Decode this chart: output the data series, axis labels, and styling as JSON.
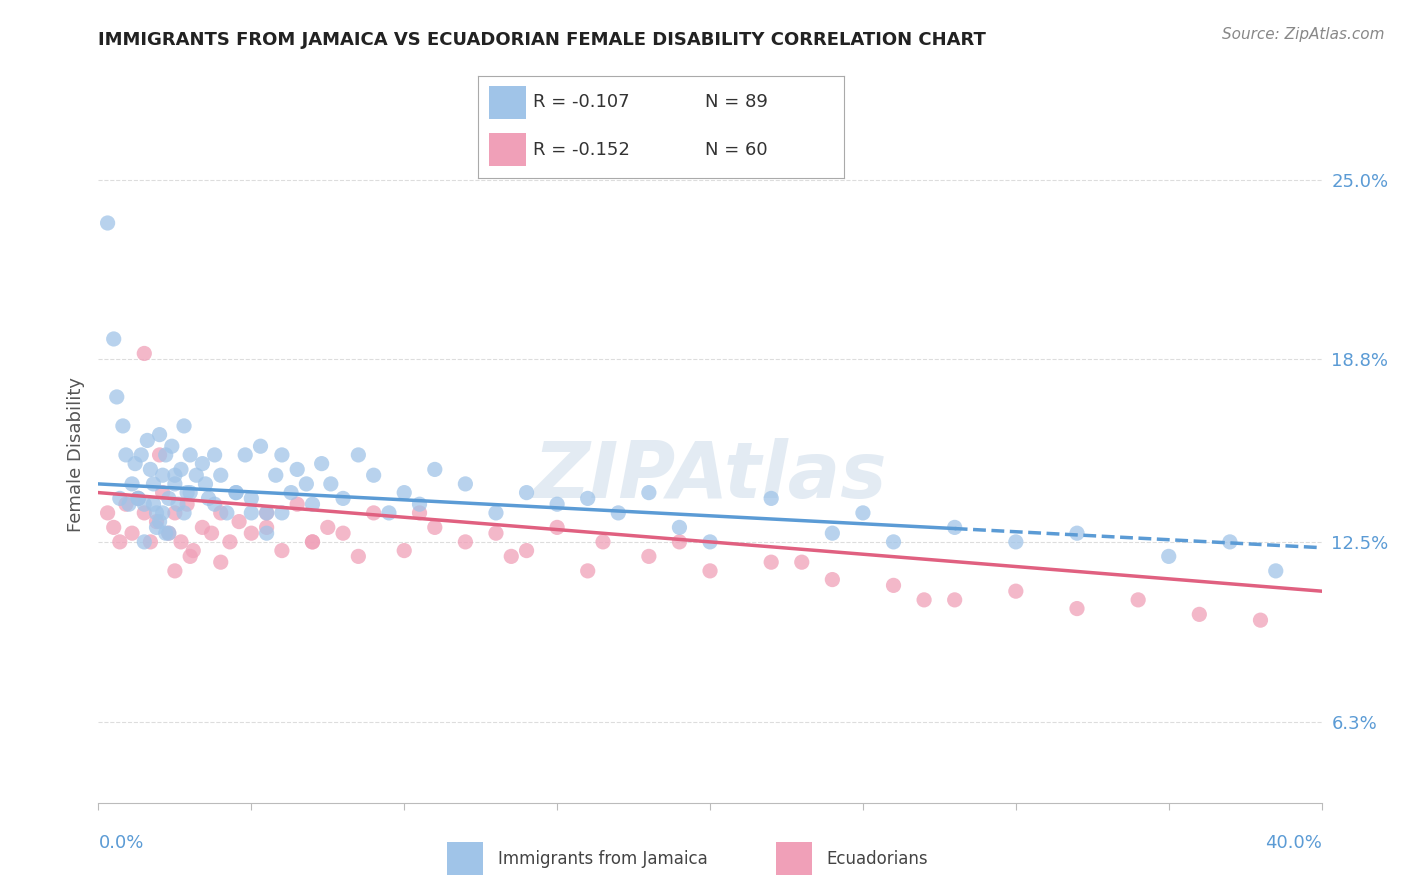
{
  "title": "IMMIGRANTS FROM JAMAICA VS ECUADORIAN FEMALE DISABILITY CORRELATION CHART",
  "source_text": "Source: ZipAtlas.com",
  "ylabel": "Female Disability",
  "right_yticks": [
    6.3,
    12.5,
    18.8,
    25.0
  ],
  "right_ytick_labels": [
    "6.3%",
    "12.5%",
    "18.8%",
    "25.0%"
  ],
  "xmin": 0.0,
  "xmax": 40.0,
  "ymin": 3.5,
  "ymax": 27.5,
  "series1_label": "Immigrants from Jamaica",
  "series1_dot_color": "#a0c4e8",
  "series1_line_color": "#5b9bd5",
  "series1_R": -0.107,
  "series1_N": 89,
  "series2_label": "Ecuadorians",
  "series2_dot_color": "#f0a0b8",
  "series2_line_color": "#e06080",
  "series2_R": -0.152,
  "series2_N": 60,
  "watermark": "ZIPAtlas",
  "title_color": "#222222",
  "axis_color": "#bbbbbb",
  "grid_color": "#dddddd",
  "right_label_color": "#5b9bd5",
  "legend_border_color": "#aaaaaa",
  "series1_x": [
    0.3,
    0.5,
    0.6,
    0.7,
    0.8,
    0.9,
    1.0,
    1.1,
    1.2,
    1.3,
    1.4,
    1.5,
    1.6,
    1.7,
    1.8,
    1.9,
    2.0,
    2.1,
    2.2,
    2.3,
    2.4,
    2.5,
    2.6,
    2.7,
    2.8,
    2.9,
    3.0,
    3.2,
    3.4,
    3.6,
    3.8,
    4.0,
    4.2,
    4.5,
    4.8,
    5.0,
    5.3,
    5.5,
    5.8,
    6.0,
    6.3,
    6.5,
    6.8,
    7.0,
    7.3,
    7.6,
    8.0,
    8.5,
    9.0,
    9.5,
    10.0,
    10.5,
    11.0,
    12.0,
    13.0,
    14.0,
    15.0,
    16.0,
    17.0,
    18.0,
    19.0,
    20.0,
    22.0,
    24.0,
    25.0,
    26.0,
    28.0,
    30.0,
    32.0,
    35.0,
    37.0,
    38.5,
    2.1,
    2.3,
    2.0,
    1.8,
    1.5,
    1.3,
    2.5,
    2.8,
    3.0,
    2.2,
    1.9,
    3.5,
    3.8,
    4.5,
    5.0,
    5.5,
    6.0
  ],
  "series1_y": [
    23.5,
    19.5,
    17.5,
    14.0,
    16.5,
    15.5,
    13.8,
    14.5,
    15.2,
    14.0,
    15.5,
    13.8,
    16.0,
    15.0,
    14.5,
    13.5,
    16.2,
    14.8,
    15.5,
    14.0,
    15.8,
    14.5,
    13.8,
    15.0,
    16.5,
    14.2,
    15.5,
    14.8,
    15.2,
    14.0,
    15.5,
    14.8,
    13.5,
    14.2,
    15.5,
    14.0,
    15.8,
    13.5,
    14.8,
    15.5,
    14.2,
    15.0,
    14.5,
    13.8,
    15.2,
    14.5,
    14.0,
    15.5,
    14.8,
    13.5,
    14.2,
    13.8,
    15.0,
    14.5,
    13.5,
    14.2,
    13.8,
    14.0,
    13.5,
    14.2,
    13.0,
    12.5,
    14.0,
    12.8,
    13.5,
    12.5,
    13.0,
    12.5,
    12.8,
    12.0,
    12.5,
    11.5,
    13.5,
    12.8,
    13.2,
    13.8,
    12.5,
    14.0,
    14.8,
    13.5,
    14.2,
    12.8,
    13.0,
    14.5,
    13.8,
    14.2,
    13.5,
    12.8,
    13.5
  ],
  "series2_x": [
    0.3,
    0.5,
    0.7,
    0.9,
    1.1,
    1.3,
    1.5,
    1.7,
    1.9,
    2.1,
    2.3,
    2.5,
    2.7,
    2.9,
    3.1,
    3.4,
    3.7,
    4.0,
    4.3,
    4.6,
    5.0,
    5.5,
    6.0,
    6.5,
    7.0,
    7.5,
    8.0,
    9.0,
    10.0,
    11.0,
    12.0,
    13.0,
    14.0,
    15.0,
    16.5,
    18.0,
    20.0,
    22.0,
    24.0,
    26.0,
    28.0,
    30.0,
    32.0,
    34.0,
    36.0,
    38.0,
    1.5,
    2.0,
    2.5,
    3.0,
    4.0,
    5.5,
    7.0,
    8.5,
    10.5,
    13.5,
    16.0,
    19.0,
    23.0,
    27.0
  ],
  "series2_y": [
    13.5,
    13.0,
    12.5,
    13.8,
    12.8,
    14.0,
    13.5,
    12.5,
    13.2,
    14.2,
    12.8,
    13.5,
    12.5,
    13.8,
    12.2,
    13.0,
    12.8,
    13.5,
    12.5,
    13.2,
    12.8,
    13.5,
    12.2,
    13.8,
    12.5,
    13.0,
    12.8,
    13.5,
    12.2,
    13.0,
    12.5,
    12.8,
    12.2,
    13.0,
    12.5,
    12.0,
    11.5,
    11.8,
    11.2,
    11.0,
    10.5,
    10.8,
    10.2,
    10.5,
    10.0,
    9.8,
    19.0,
    15.5,
    11.5,
    12.0,
    11.8,
    13.0,
    12.5,
    12.0,
    13.5,
    12.0,
    11.5,
    12.5,
    11.8,
    10.5
  ],
  "trend1_x0": 0.0,
  "trend1_y0": 14.5,
  "trend1_x1": 40.0,
  "trend1_y1": 12.3,
  "trend1_solid_end": 28.0,
  "trend2_x0": 0.0,
  "trend2_y0": 14.2,
  "trend2_x1": 40.0,
  "trend2_y1": 10.8
}
